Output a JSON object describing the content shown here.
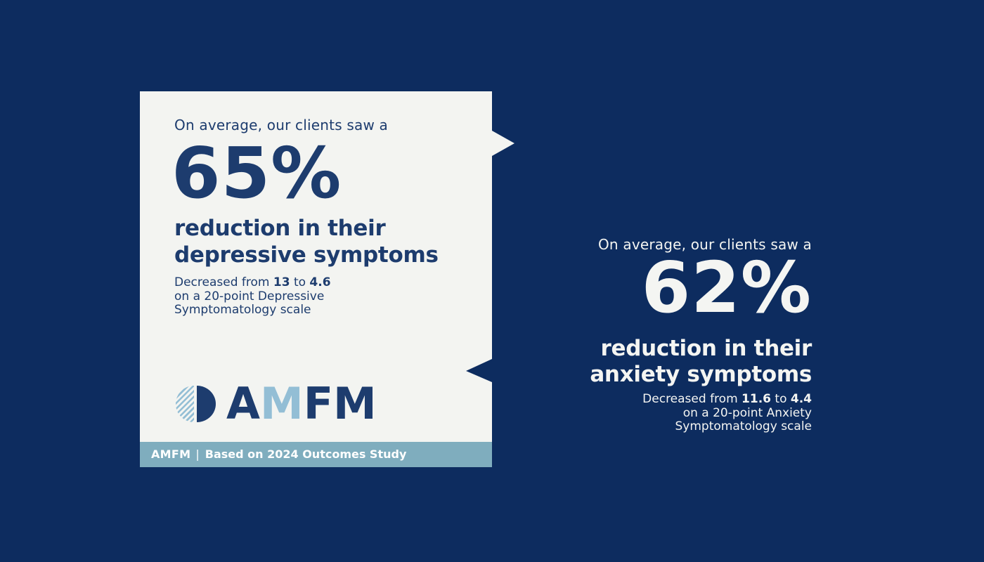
{
  "colors": {
    "background_navy": "#0d2c5f",
    "card_background": "#f3f4f1",
    "navy_text": "#1d3c6e",
    "footer_bar": "#7fadbe",
    "light_blue_accent": "#93bed5",
    "white_text": "#f4f5f2"
  },
  "chart_data": {
    "type": "table",
    "title": "AMFM Based on 2024 Outcomes Study",
    "stats": [
      {
        "metric": "depressive symptoms",
        "reduction_percent": 65,
        "from_score": 13,
        "to_score": 4.6,
        "scale": "20-point Depressive Symptomatology scale"
      },
      {
        "metric": "anxiety symptoms",
        "reduction_percent": 62,
        "from_score": 11.6,
        "to_score": 4.4,
        "scale": "20-point Anxiety Symptomatology scale"
      }
    ]
  },
  "card": {
    "intro": "On average, our clients saw a",
    "stat": "65%",
    "heading_line1": "reduction in their",
    "heading_line2": "depressive symptoms",
    "detail_lead": "Decreased from ",
    "detail_from": "13",
    "detail_mid": " to ",
    "detail_to": "4.6",
    "detail_line2": "on a 20-point Depressive",
    "detail_line3": "Symptomatology scale",
    "logo": {
      "letter1": "A",
      "letter2": "M",
      "letter3": "F",
      "letter4": "M"
    },
    "footer_brand": "AMFM",
    "footer_sep": "|",
    "footer_text": "Based on 2024 Outcomes Study"
  },
  "right": {
    "intro": "On average, our clients saw a",
    "stat": "62%",
    "heading_line1": "reduction in their",
    "heading_line2": "anxiety symptoms",
    "detail_lead": "Decreased from ",
    "detail_from": "11.6",
    "detail_mid": " to ",
    "detail_to": "4.4",
    "detail_line2": "on a 20-point Anxiety",
    "detail_line3": "Symptomatology scale"
  }
}
